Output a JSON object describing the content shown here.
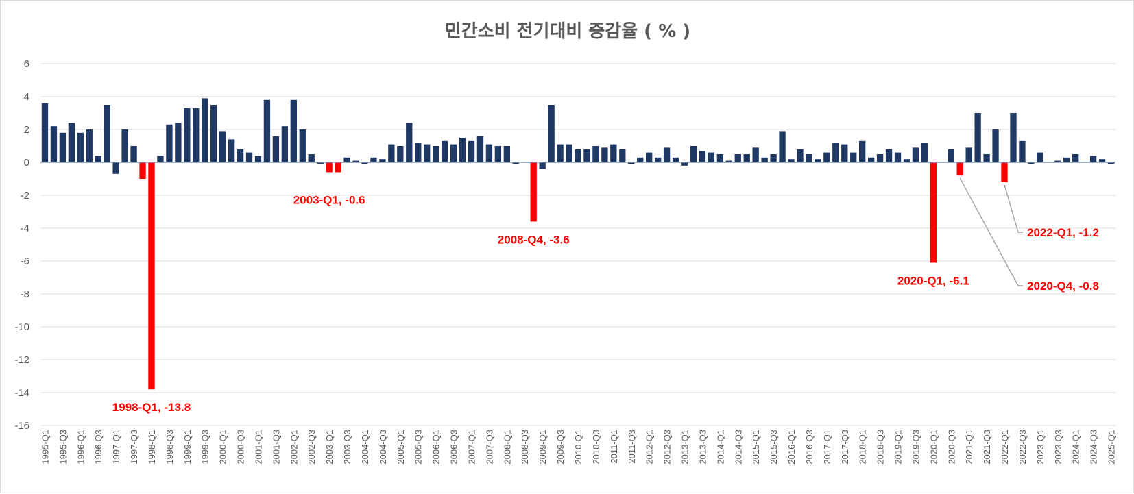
{
  "chart_data": {
    "type": "bar",
    "title": "민간소비 전기대비 증감율 ( % )",
    "xlabel": "",
    "ylabel": "",
    "ylim": [
      -16,
      6
    ],
    "yticks": [
      6,
      4,
      2,
      0,
      -2,
      -4,
      -6,
      -8,
      -10,
      -12,
      -14,
      -16
    ],
    "grid": true,
    "legend": "none",
    "bar_color": "#1f3864",
    "highlight_color": "#ff0000",
    "grid_color": "#d9d9d9",
    "title_color": "#595959",
    "annotation_color": "#ff0000",
    "categories": [
      "1995-Q1",
      "1995-Q2",
      "1995-Q3",
      "1995-Q4",
      "1996-Q1",
      "1996-Q2",
      "1996-Q3",
      "1996-Q4",
      "1997-Q1",
      "1997-Q2",
      "1997-Q3",
      "1997-Q4",
      "1998-Q1",
      "1998-Q2",
      "1998-Q3",
      "1998-Q4",
      "1999-Q1",
      "1999-Q2",
      "1999-Q3",
      "1999-Q4",
      "2000-Q1",
      "2000-Q2",
      "2000-Q3",
      "2000-Q4",
      "2001-Q1",
      "2001-Q2",
      "2001-Q3",
      "2001-Q4",
      "2002-Q1",
      "2002-Q2",
      "2002-Q3",
      "2002-Q4",
      "2003-Q1",
      "2003-Q2",
      "2003-Q3",
      "2003-Q4",
      "2004-Q1",
      "2004-Q2",
      "2004-Q3",
      "2004-Q4",
      "2005-Q1",
      "2005-Q2",
      "2005-Q3",
      "2005-Q4",
      "2006-Q1",
      "2006-Q2",
      "2006-Q3",
      "2006-Q4",
      "2007-Q1",
      "2007-Q2",
      "2007-Q3",
      "2007-Q4",
      "2008-Q1",
      "2008-Q2",
      "2008-Q3",
      "2008-Q4",
      "2009-Q1",
      "2009-Q2",
      "2009-Q3",
      "2009-Q4",
      "2010-Q1",
      "2010-Q2",
      "2010-Q3",
      "2010-Q4",
      "2011-Q1",
      "2011-Q2",
      "2011-Q3",
      "2011-Q4",
      "2012-Q1",
      "2012-Q2",
      "2012-Q3",
      "2012-Q4",
      "2013-Q1",
      "2013-Q2",
      "2013-Q3",
      "2013-Q4",
      "2014-Q1",
      "2014-Q2",
      "2014-Q3",
      "2014-Q4",
      "2015-Q1",
      "2015-Q2",
      "2015-Q3",
      "2015-Q4",
      "2016-Q1",
      "2016-Q2",
      "2016-Q3",
      "2016-Q4",
      "2017-Q1",
      "2017-Q2",
      "2017-Q3",
      "2017-Q4",
      "2018-Q1",
      "2018-Q2",
      "2018-Q3",
      "2018-Q4",
      "2019-Q1",
      "2019-Q2",
      "2019-Q3",
      "2019-Q4",
      "2020-Q1",
      "2020-Q2",
      "2020-Q3",
      "2020-Q4",
      "2021-Q1",
      "2021-Q2",
      "2021-Q3",
      "2021-Q4",
      "2022-Q1",
      "2022-Q2",
      "2022-Q3",
      "2022-Q4",
      "2023-Q1",
      "2023-Q2",
      "2023-Q3",
      "2023-Q4",
      "2024-Q1",
      "2024-Q2",
      "2024-Q3",
      "2024-Q4",
      "2025-Q1"
    ],
    "values": [
      3.6,
      2.2,
      1.8,
      2.4,
      1.8,
      2.0,
      0.4,
      3.5,
      -0.7,
      2.0,
      1.0,
      -1.0,
      -13.8,
      0.4,
      2.3,
      2.4,
      3.3,
      3.3,
      3.9,
      3.5,
      1.9,
      1.4,
      0.8,
      0.6,
      0.4,
      3.8,
      1.6,
      2.2,
      3.8,
      2.0,
      0.5,
      -0.1,
      -0.6,
      -0.6,
      0.3,
      0.1,
      -0.1,
      0.3,
      0.2,
      1.1,
      1.0,
      2.4,
      1.2,
      1.1,
      1.0,
      1.3,
      1.1,
      1.5,
      1.3,
      1.6,
      1.1,
      1.0,
      1.0,
      -0.1,
      0.0,
      -3.6,
      -0.4,
      3.5,
      1.1,
      1.1,
      0.8,
      0.8,
      1.0,
      0.9,
      1.1,
      0.8,
      -0.1,
      0.3,
      0.6,
      0.3,
      0.9,
      0.3,
      -0.2,
      1.0,
      0.7,
      0.6,
      0.5,
      0.1,
      0.5,
      0.5,
      0.9,
      0.3,
      0.5,
      1.9,
      0.2,
      0.8,
      0.5,
      0.2,
      0.6,
      1.2,
      1.1,
      0.6,
      1.3,
      0.3,
      0.5,
      0.8,
      0.6,
      0.2,
      0.9,
      1.2,
      -6.1,
      0.0,
      0.8,
      -0.8,
      0.9,
      3.0,
      0.5,
      2.0,
      -1.2,
      3.0,
      1.3,
      -0.1,
      0.6,
      0.0,
      0.1,
      0.3,
      0.5,
      0.0,
      0.4,
      0.2,
      -0.1
    ],
    "highlighted": [
      "1997-Q4",
      "1998-Q1",
      "2003-Q1",
      "2003-Q2",
      "2008-Q4",
      "2020-Q1",
      "2020-Q4",
      "2022-Q1"
    ],
    "annotations": [
      {
        "category": "1998-Q1",
        "text": "1998-Q1, -13.8"
      },
      {
        "category": "2003-Q1",
        "text": "2003-Q1, -0.6"
      },
      {
        "category": "2008-Q4",
        "text": "2008-Q4, -3.6"
      },
      {
        "category": "2020-Q1",
        "text": "2020-Q1, -6.1"
      },
      {
        "category": "2022-Q1",
        "text": "2022-Q1, -1.2",
        "leader_line": true
      },
      {
        "category": "2020-Q4",
        "text": "2020-Q4, -0.8",
        "leader_line": true
      }
    ]
  }
}
